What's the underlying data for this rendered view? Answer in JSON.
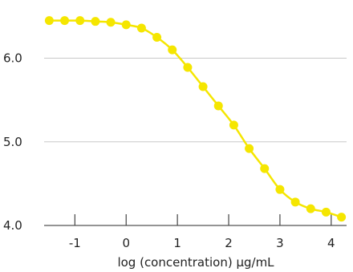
{
  "chart_data": {
    "type": "scatter",
    "title": "",
    "xlabel": "log (concentration) µg/mL",
    "ylabel": "",
    "xlim": [
      -1.6,
      4.3
    ],
    "ylim": [
      4.0,
      6.6
    ],
    "x_ticks": [
      "-1",
      "0",
      "1",
      "2",
      "3",
      "4"
    ],
    "x_tick_values": [
      -1,
      0,
      1,
      2,
      3,
      4
    ],
    "y_ticks": [
      "4.0",
      "5.0",
      "6.0"
    ],
    "y_tick_values": [
      4.0,
      5.0,
      6.0
    ],
    "grid": "horizontal",
    "series": [
      {
        "color": "#f5e600",
        "x": [
          -1.5,
          -1.2,
          -0.9,
          -0.6,
          -0.3,
          0.0,
          0.3,
          0.6,
          0.9,
          1.2,
          1.5,
          1.8,
          2.1,
          2.4,
          2.7,
          3.0,
          3.3,
          3.6,
          3.9,
          4.2
        ],
        "y": [
          6.45,
          6.45,
          6.45,
          6.44,
          6.43,
          6.4,
          6.36,
          6.25,
          6.1,
          5.89,
          5.66,
          5.43,
          5.2,
          4.92,
          4.68,
          4.43,
          4.28,
          4.2,
          4.16,
          4.1
        ]
      }
    ]
  }
}
